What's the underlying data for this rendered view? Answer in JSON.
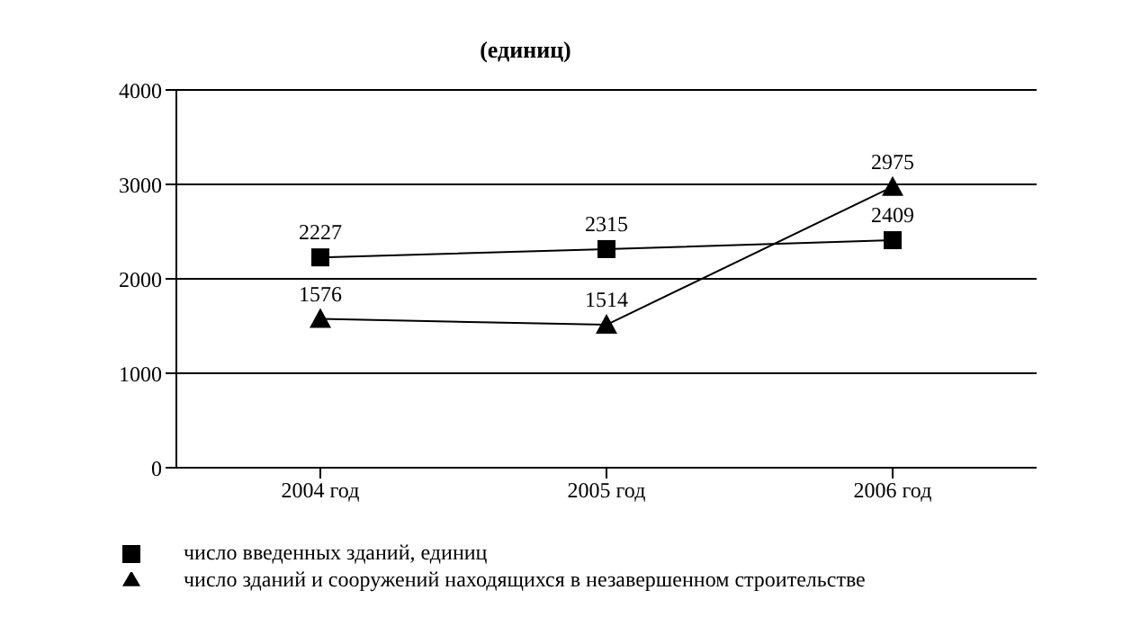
{
  "chart_data": {
    "type": "line",
    "title": "(единиц)",
    "categories": [
      "2004 год",
      "2005 год",
      "2006 год"
    ],
    "series": [
      {
        "name": "число введенных зданий, единиц",
        "color": "#000000",
        "marker": "square",
        "values": [
          2227,
          2315,
          2409
        ]
      },
      {
        "name": "число зданий и сооружений находящихся в незавершенном строительстве",
        "color": "#000000",
        "marker": "triangle",
        "values": [
          1576,
          1514,
          2975
        ]
      }
    ],
    "ylim": [
      0,
      4000
    ],
    "yticks": [
      0,
      1000,
      2000,
      3000,
      4000
    ],
    "grid": "y",
    "legend": "bottom",
    "data_labels": true
  }
}
